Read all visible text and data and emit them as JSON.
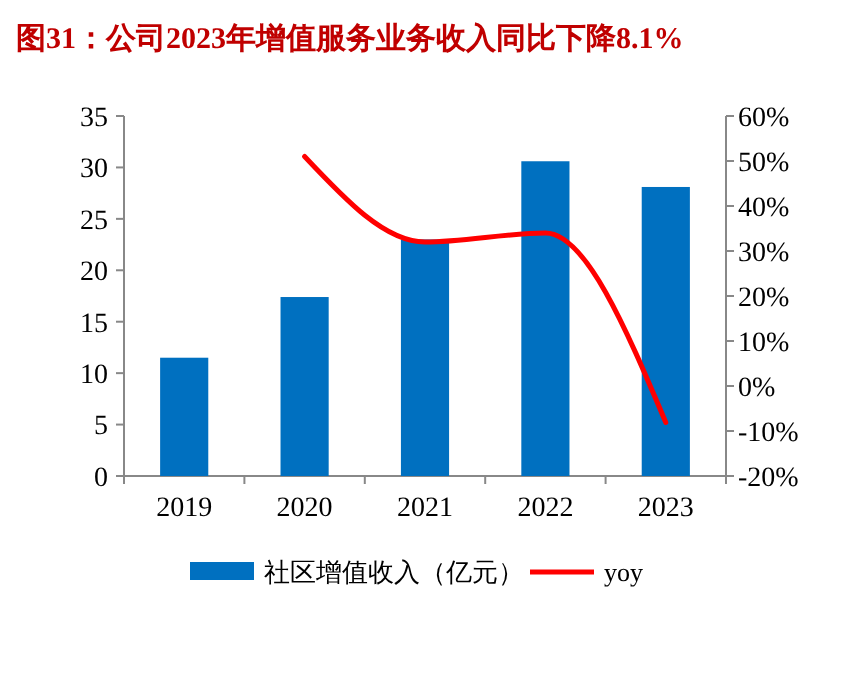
{
  "chart_data": {
    "type": "bar",
    "title": "图31：公司2023年增值服务业务收入同比下降8.1%",
    "categories": [
      "2019",
      "2020",
      "2021",
      "2022",
      "2023"
    ],
    "series": [
      {
        "name": "社区增值收入（亿元）",
        "color": "#0070c0",
        "values": [
          11.5,
          17.4,
          23.0,
          30.6,
          28.1
        ]
      },
      {
        "name": "yoy",
        "type": "line",
        "axis": "y2",
        "color": "#ff0000",
        "values": [
          null,
          51,
          32,
          34,
          -8.1
        ]
      }
    ],
    "ylim": [
      0,
      35
    ],
    "yticks": [
      0,
      5,
      10,
      15,
      20,
      25,
      30,
      35
    ],
    "y2lim": [
      -20,
      60
    ],
    "y2ticks": [
      {
        "value": -20,
        "label": "-20%"
      },
      {
        "value": -10,
        "label": "-10%"
      },
      {
        "value": 0,
        "label": "0%"
      },
      {
        "value": 10,
        "label": "10%"
      },
      {
        "value": 20,
        "label": "20%"
      },
      {
        "value": 30,
        "label": "30%"
      },
      {
        "value": 40,
        "label": "40%"
      },
      {
        "value": 50,
        "label": "50%"
      },
      {
        "value": 60,
        "label": "60%"
      }
    ],
    "legend": "bottom",
    "grid": false
  }
}
